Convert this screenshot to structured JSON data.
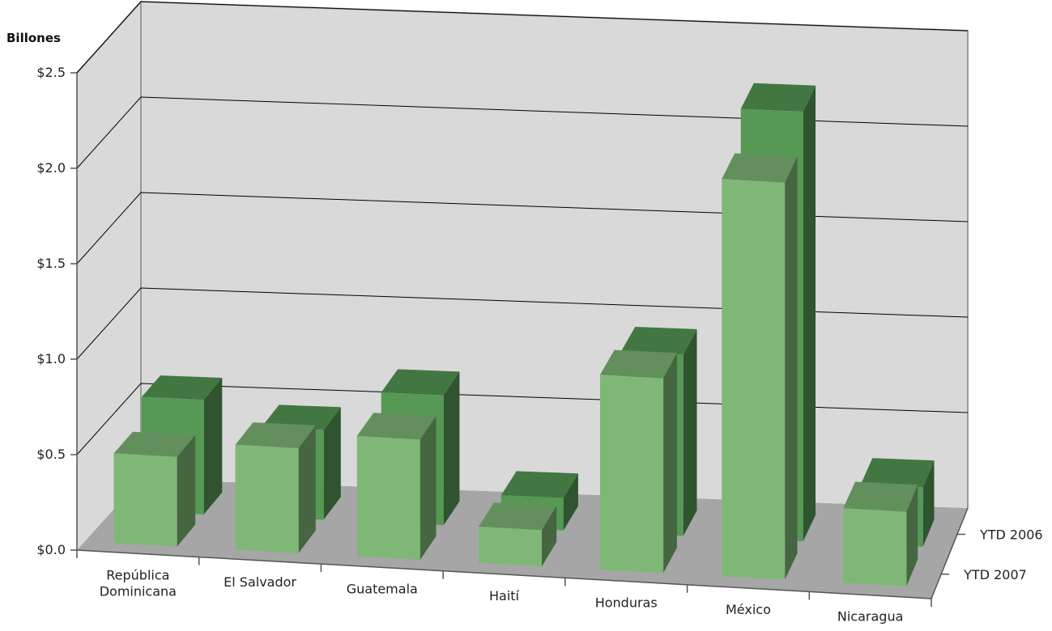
{
  "chart_data": {
    "type": "bar",
    "three_d": true,
    "title": "",
    "ylabel": "Billones",
    "xlabel": "",
    "ylim": [
      0,
      2.5
    ],
    "y_ticks": [
      "$0.0",
      "$0.5",
      "$1.0",
      "$1.5",
      "$2.0",
      "$2.5"
    ],
    "y_tick_values": [
      0,
      0.5,
      1.0,
      1.5,
      2.0,
      2.5
    ],
    "categories": [
      [
        "República",
        "Dominicana"
      ],
      [
        "El Salvador"
      ],
      [
        "Guatemala"
      ],
      [
        "Haití"
      ],
      [
        "Honduras"
      ],
      [
        "México"
      ],
      [
        "Nicaragua"
      ]
    ],
    "series": [
      {
        "name": "YTD 2007",
        "values": [
          0.47,
          0.55,
          0.63,
          0.19,
          1.02,
          2.08,
          0.39
        ],
        "color": "#7fb777"
      },
      {
        "name": "YTD 2006",
        "values": [
          0.6,
          0.47,
          0.68,
          0.17,
          0.95,
          2.25,
          0.31
        ],
        "color": "#559955"
      }
    ],
    "grid": true,
    "walls_color": "#d9d9d9",
    "floor_color": "#a6a6a6"
  }
}
